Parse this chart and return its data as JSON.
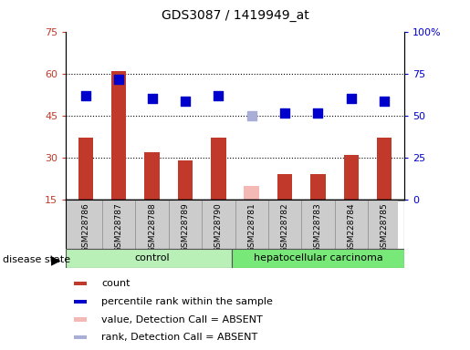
{
  "title": "GDS3087 / 1419949_at",
  "samples": [
    "GSM228786",
    "GSM228787",
    "GSM228788",
    "GSM228789",
    "GSM228790",
    "GSM228781",
    "GSM228782",
    "GSM228783",
    "GSM228784",
    "GSM228785"
  ],
  "groups": [
    "control",
    "control",
    "control",
    "control",
    "control",
    "hepatocellular carcinoma",
    "hepatocellular carcinoma",
    "hepatocellular carcinoma",
    "hepatocellular carcinoma",
    "hepatocellular carcinoma"
  ],
  "count_values": [
    37,
    61,
    32,
    29,
    37,
    null,
    24,
    24,
    31,
    37
  ],
  "rank_values_left": [
    52,
    58,
    51,
    50,
    52,
    null,
    46,
    46,
    51,
    50
  ],
  "count_absent": [
    null,
    null,
    null,
    null,
    null,
    20,
    null,
    null,
    null,
    null
  ],
  "rank_absent_left": [
    null,
    null,
    null,
    null,
    null,
    45,
    null,
    null,
    null,
    null
  ],
  "bar_color": "#c0392b",
  "bar_absent_color": "#f4b8b5",
  "dot_color": "#0000cc",
  "dot_absent_color": "#a8aed6",
  "ylim_left": [
    15,
    75
  ],
  "yticks_left": [
    15,
    30,
    45,
    60,
    75
  ],
  "ytick_labels_left": [
    "15",
    "30",
    "45",
    "60",
    "75"
  ],
  "yticks_right_pos": [
    15,
    30,
    45,
    60,
    75
  ],
  "ytick_labels_right": [
    "0",
    "25",
    "50",
    "75",
    "100%"
  ],
  "group_colors": {
    "control": "#b8f0b8",
    "hepatocellular carcinoma": "#78e878"
  },
  "legend_items": [
    {
      "label": "count",
      "color": "#c0392b"
    },
    {
      "label": "percentile rank within the sample",
      "color": "#0000cc"
    },
    {
      "label": "value, Detection Call = ABSENT",
      "color": "#f4b8b5"
    },
    {
      "label": "rank, Detection Call = ABSENT",
      "color": "#a8aed6"
    }
  ],
  "disease_state_label": "disease state",
  "bar_width": 0.45,
  "dot_size": 50
}
